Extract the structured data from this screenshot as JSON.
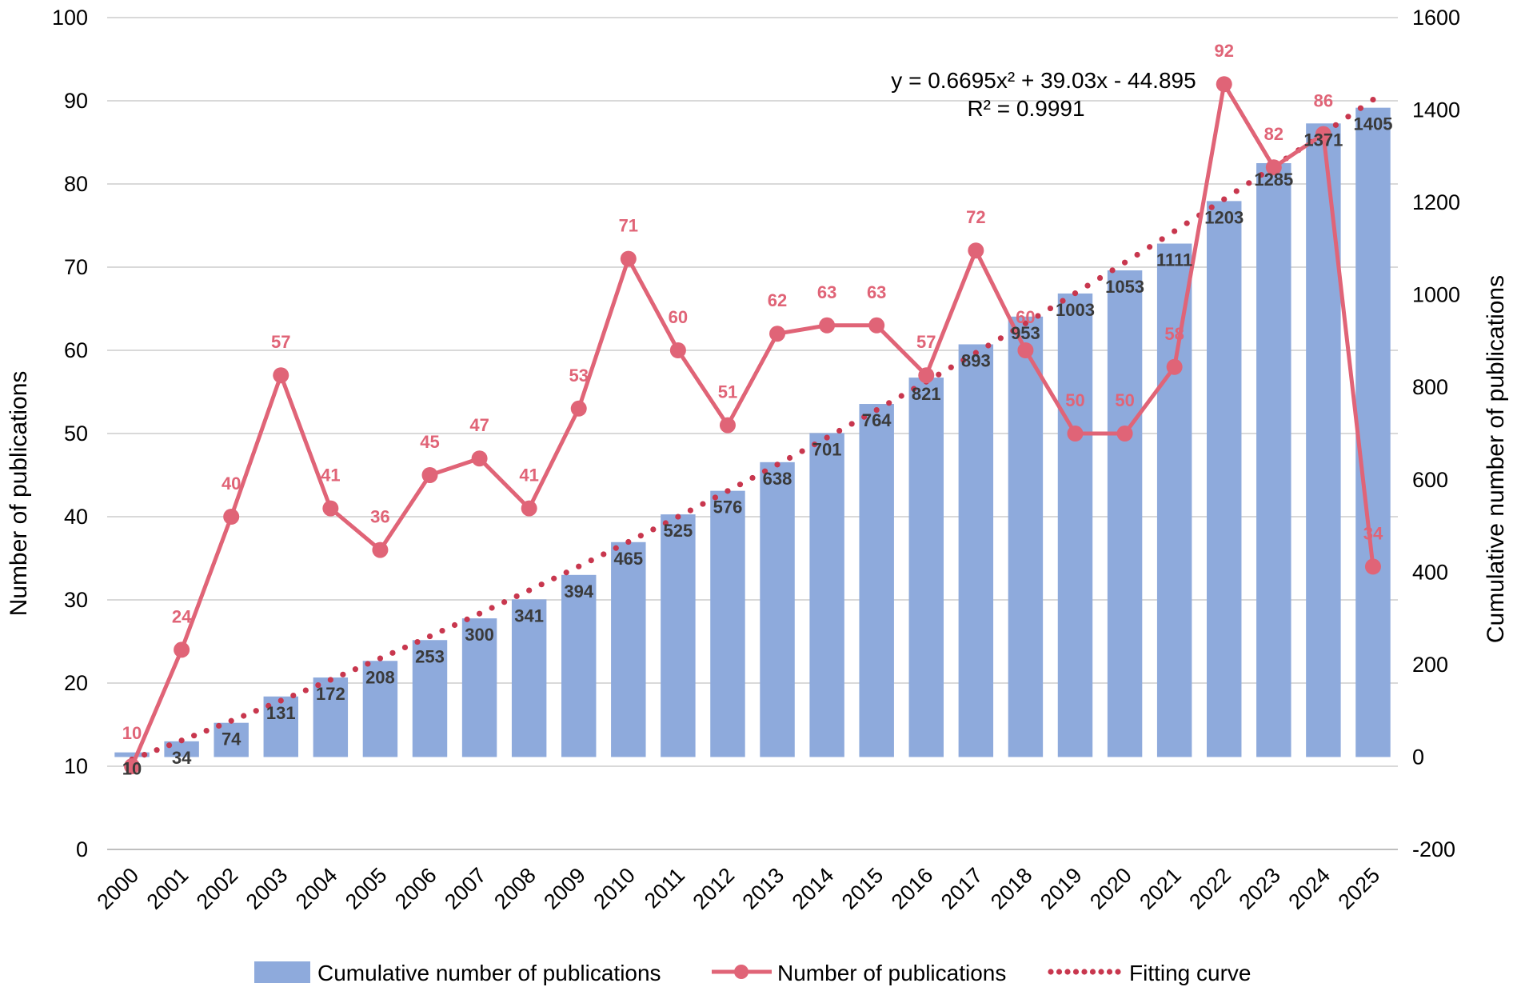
{
  "chart_data": {
    "type": "bar+line",
    "categories": [
      "2000",
      "2001",
      "2002",
      "2003",
      "2004",
      "2005",
      "2006",
      "2007",
      "2008",
      "2009",
      "2010",
      "2011",
      "2012",
      "2013",
      "2014",
      "2015",
      "2016",
      "2017",
      "2018",
      "2019",
      "2020",
      "2021",
      "2022",
      "2023",
      "2024",
      "2025"
    ],
    "series": [
      {
        "name": "Cumulative number of publications",
        "type": "bar",
        "axis": "right",
        "values": [
          10,
          34,
          74,
          131,
          172,
          208,
          253,
          300,
          341,
          394,
          465,
          525,
          576,
          638,
          701,
          764,
          821,
          893,
          953,
          1003,
          1053,
          1111,
          1203,
          1285,
          1371,
          1405
        ]
      },
      {
        "name": "Number of publications",
        "type": "line",
        "axis": "left",
        "values": [
          10,
          24,
          40,
          57,
          41,
          36,
          45,
          47,
          41,
          53,
          71,
          60,
          51,
          62,
          63,
          63,
          57,
          72,
          60,
          50,
          50,
          58,
          92,
          82,
          86,
          34
        ]
      },
      {
        "name": "Fitting curve",
        "type": "dotted-line",
        "axis": "right",
        "equation": "y = 0.6695x² + 39.03x - 44.895",
        "r2": "R² = 0.9991"
      }
    ],
    "ylabel": "Number of publications",
    "y2label": "Cumulative number of publications",
    "ylim": [
      0,
      100
    ],
    "y2lim": [
      -200,
      1600
    ],
    "yticks": [
      "0",
      "10",
      "20",
      "30",
      "40",
      "50",
      "60",
      "70",
      "80",
      "90",
      "100"
    ],
    "y2ticks": [
      "-200",
      "0",
      "200",
      "400",
      "600",
      "800",
      "1000",
      "1200",
      "1400",
      "1600"
    ],
    "grid": true,
    "legend": "bottom",
    "colors": {
      "bars": "#8eaadc",
      "line": "#e06477",
      "fit": "#c8374e"
    }
  }
}
